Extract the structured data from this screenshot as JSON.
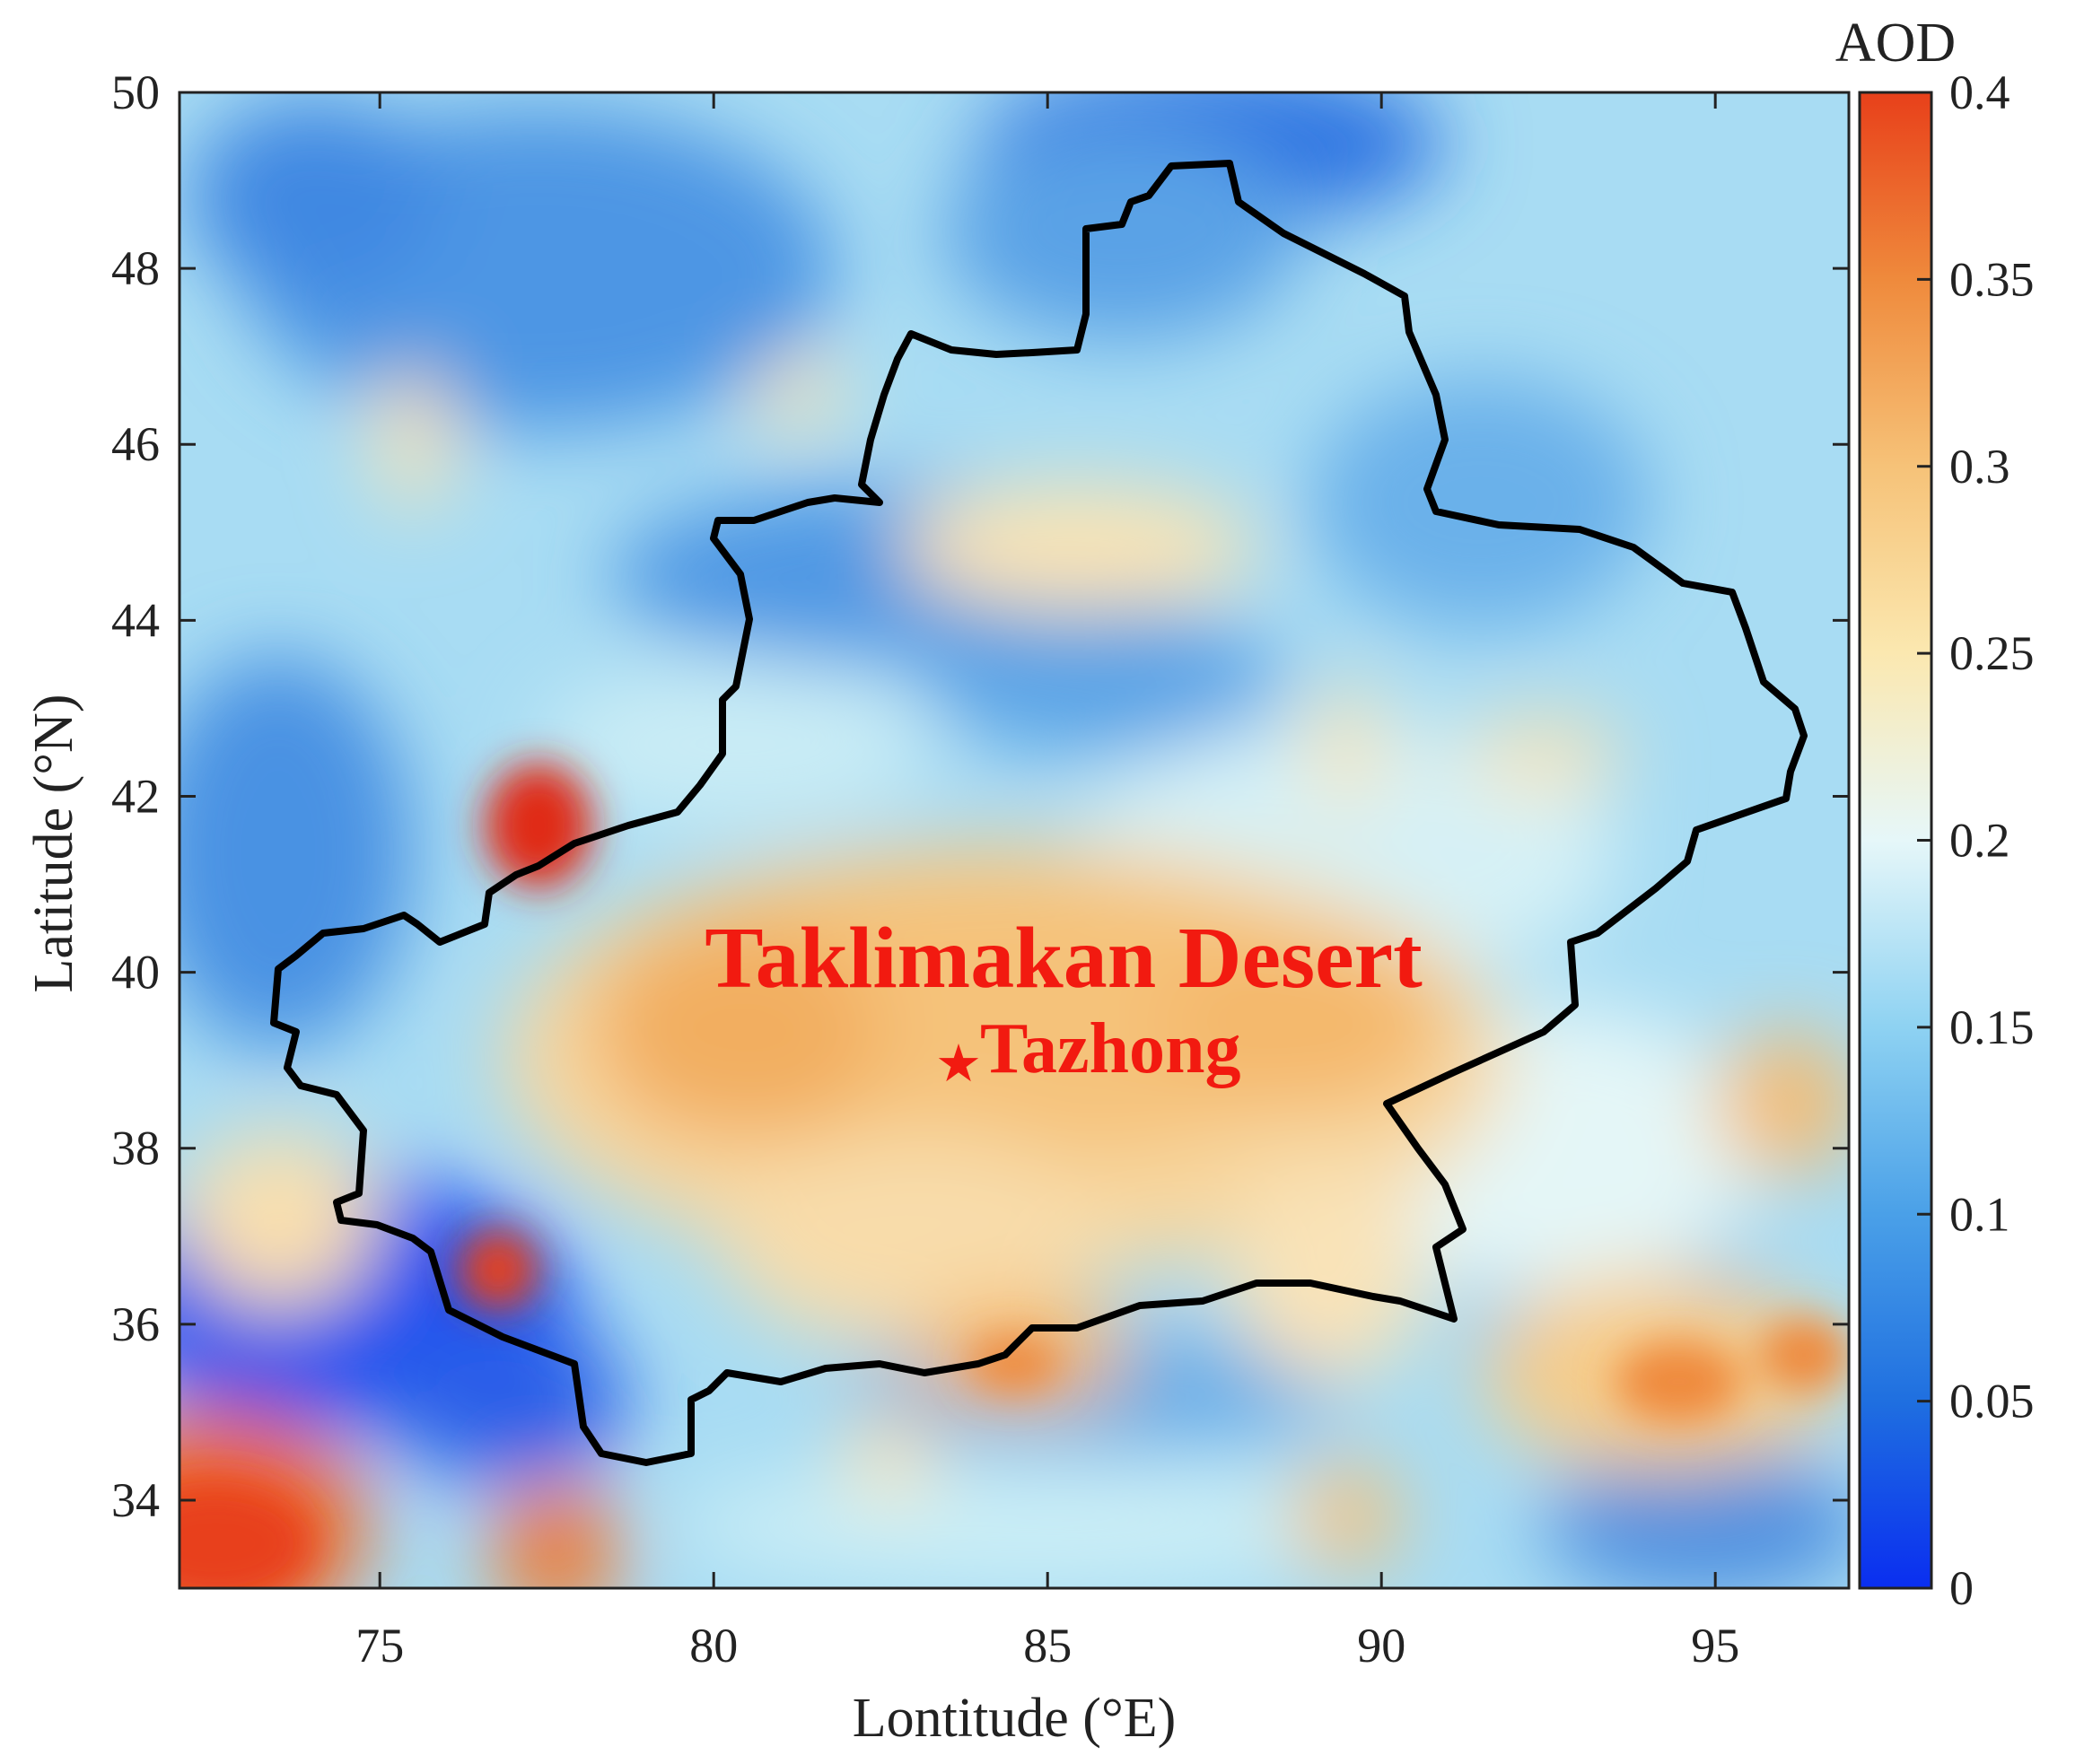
{
  "map": {
    "xlabel": "Lontitude (°E)",
    "ylabel": "Latitude (°N)",
    "x_ticks": [
      "75",
      "80",
      "85",
      "90",
      "95"
    ],
    "y_ticks": [
      "34",
      "36",
      "38",
      "40",
      "42",
      "44",
      "46",
      "48",
      "50"
    ],
    "lon_range": [
      72,
      97
    ],
    "lat_range": [
      33,
      50
    ],
    "labels": {
      "region": "Taklimakan Desert",
      "station": "Tazhong"
    },
    "boundary_color": "#000000",
    "label_color": "#f21a10"
  },
  "colorbar": {
    "title": "AOD",
    "ticks": [
      "0",
      "0.05",
      "0.1",
      "0.15",
      "0.2",
      "0.25",
      "0.3",
      "0.35",
      "0.4"
    ],
    "range": [
      0,
      0.4
    ],
    "colors": [
      "#0a2ef0",
      "#1f6fe0",
      "#4aa0e8",
      "#8ed2f2",
      "#e6f7f9",
      "#fbe8b0",
      "#f6c278",
      "#ef8a3c",
      "#e8401a"
    ]
  }
}
